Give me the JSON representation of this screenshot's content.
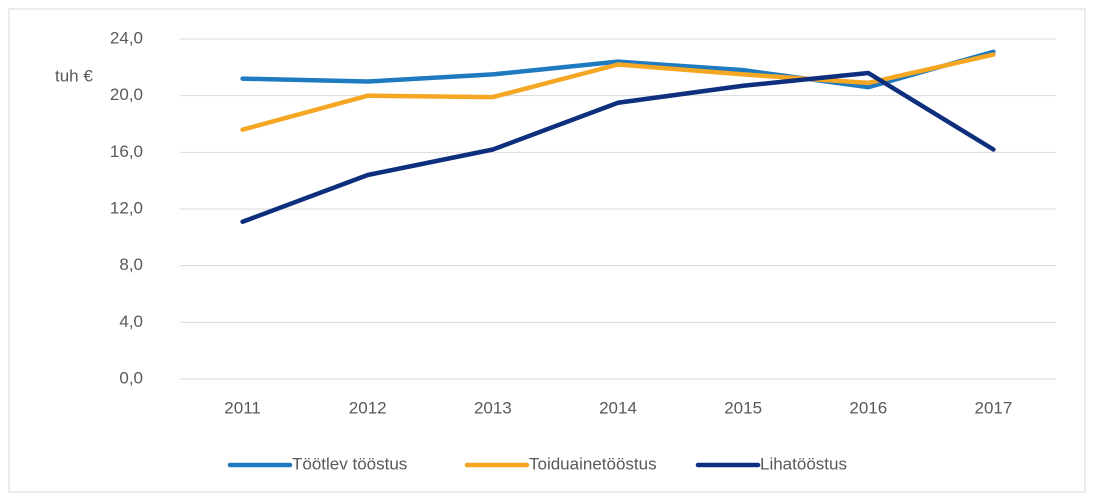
{
  "chart_data": {
    "type": "line",
    "y_axis_label": "tuh €",
    "categories": [
      "2011",
      "2012",
      "2013",
      "2014",
      "2015",
      "2016",
      "2017"
    ],
    "series": [
      {
        "name": "Töötlev tööstus",
        "color": "#1f7bbf",
        "values": [
          21.2,
          21.0,
          21.5,
          22.4,
          21.8,
          20.6,
          23.1
        ]
      },
      {
        "name": "Toiduainetööstus",
        "color": "#f5a623",
        "values": [
          17.6,
          20.0,
          19.9,
          22.2,
          21.5,
          20.9,
          22.9
        ]
      },
      {
        "name": "Lihatööstus",
        "color": "#0d2f7d",
        "values": [
          11.1,
          14.4,
          16.2,
          19.5,
          20.7,
          21.6,
          16.2
        ]
      }
    ],
    "ylim": [
      0,
      24
    ],
    "yticks": [
      {
        "value": 0,
        "label": "0,0"
      },
      {
        "value": 4,
        "label": "4,0"
      },
      {
        "value": 8,
        "label": "8,0"
      },
      {
        "value": 12,
        "label": "12,0"
      },
      {
        "value": 16,
        "label": "16,0"
      },
      {
        "value": 20,
        "label": "20,0"
      },
      {
        "value": 24,
        "label": "24,0"
      }
    ],
    "grid": true,
    "legend": "bottom"
  }
}
